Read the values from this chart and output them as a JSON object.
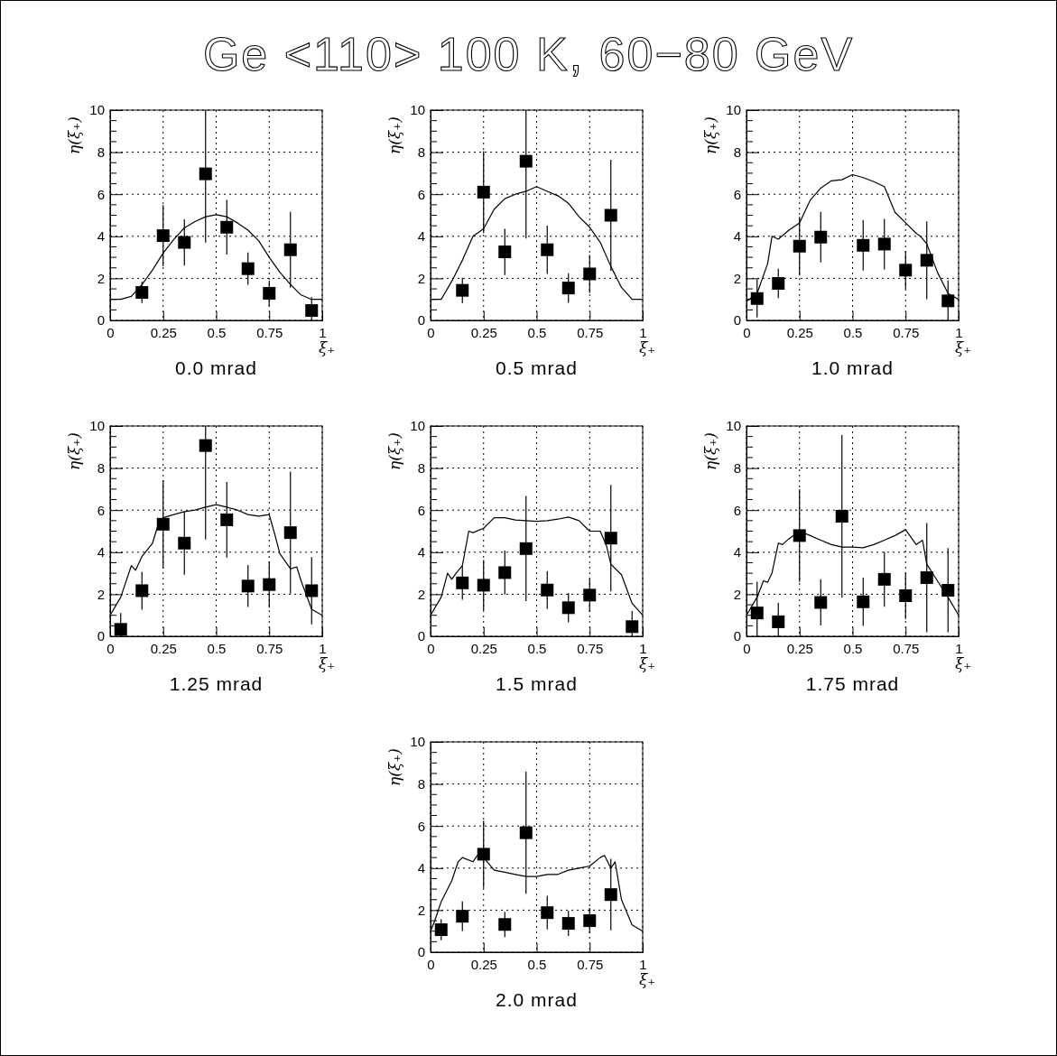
{
  "chart_data": [
    {
      "type": "scatter",
      "title": "Ge <110> 100 K, 60−80 GeV",
      "subtitle": "0.0 mrad",
      "xlabel": "ξ₊",
      "ylabel": "η(ξ₊)",
      "xlim": [
        0,
        1
      ],
      "ylim": [
        0,
        10
      ],
      "xticks": [
        0,
        0.25,
        0.5,
        0.75,
        1
      ],
      "yticks": [
        0,
        2,
        4,
        6,
        8,
        10
      ],
      "grid": true,
      "line_style": "solid",
      "series": [
        {
          "marker": "square",
          "color": "#000000",
          "x": [
            0.15,
            0.25,
            0.35,
            0.45,
            0.55,
            0.65,
            0.75,
            0.85,
            0.95
          ],
          "values": [
            1.33,
            4.03,
            3.71,
            6.97,
            4.43,
            2.46,
            1.29,
            3.36,
            0.47
          ],
          "errors": [
            0.5,
            1.45,
            1.1,
            [
              3.7,
              10
            ],
            1.3,
            0.77,
            0.6,
            1.8,
            [
              0,
              1.1
            ]
          ]
        },
        {
          "type": "line",
          "marker": "none",
          "color": "#000000",
          "x": [
            0,
            0.05,
            0.1,
            0.15,
            0.2,
            0.25,
            0.3,
            0.35,
            0.4,
            0.45,
            0.5,
            0.55,
            0.6,
            0.65,
            0.7,
            0.75,
            0.8,
            0.85,
            0.9,
            0.95,
            1
          ],
          "values": [
            1.0,
            1.0,
            1.14,
            1.7,
            2.4,
            3.2,
            3.85,
            4.4,
            4.7,
            4.93,
            5.03,
            4.93,
            4.64,
            4.29,
            3.79,
            3.0,
            2.29,
            1.71,
            1.21,
            1.0,
            1.0
          ]
        }
      ]
    },
    {
      "type": "scatter",
      "subtitle": "0.5 mrad",
      "xlabel": "ξ₊",
      "ylabel": "η(ξ₊)",
      "xlim": [
        0,
        1
      ],
      "ylim": [
        0,
        10
      ],
      "xticks": [
        0,
        0.25,
        0.5,
        0.75,
        1
      ],
      "yticks": [
        0,
        2,
        4,
        6,
        8,
        10
      ],
      "grid": true,
      "line_style": "solid",
      "series": [
        {
          "marker": "square",
          "color": "#000000",
          "x": [
            0.15,
            0.25,
            0.35,
            0.45,
            0.55,
            0.65,
            0.75,
            0.85
          ],
          "values": [
            1.43,
            6.1,
            3.26,
            7.57,
            3.36,
            1.54,
            2.21,
            5.0
          ],
          "errors": [
            0.6,
            1.95,
            1.1,
            [
              3.9,
              10
            ],
            1.15,
            0.7,
            0.9,
            2.64
          ]
        },
        {
          "type": "line",
          "marker": "none",
          "color": "#000000",
          "x": [
            0,
            0.05,
            0.1,
            0.15,
            0.2,
            0.25,
            0.3,
            0.35,
            0.4,
            0.45,
            0.5,
            0.55,
            0.6,
            0.65,
            0.7,
            0.75,
            0.8,
            0.85,
            0.9,
            0.95,
            1
          ],
          "values": [
            1.0,
            1.0,
            1.86,
            2.86,
            4.0,
            4.36,
            5.29,
            5.79,
            6.0,
            6.14,
            6.36,
            6.14,
            5.93,
            5.57,
            4.93,
            4.43,
            3.71,
            2.57,
            1.57,
            1.0,
            1.0
          ]
        }
      ]
    },
    {
      "type": "scatter",
      "subtitle": "1.0 mrad",
      "xlabel": "ξ₊",
      "ylabel": "η(ξ₊)",
      "xlim": [
        0,
        1
      ],
      "ylim": [
        0,
        10
      ],
      "xticks": [
        0,
        0.25,
        0.5,
        0.75,
        1
      ],
      "yticks": [
        0,
        2,
        4,
        6,
        8,
        10
      ],
      "grid": true,
      "line_style": "solid",
      "series": [
        {
          "marker": "square",
          "color": "#000000",
          "x": [
            0.05,
            0.15,
            0.25,
            0.35,
            0.55,
            0.65,
            0.75,
            0.85,
            0.95
          ],
          "values": [
            1.04,
            1.76,
            3.53,
            3.96,
            3.57,
            3.63,
            2.39,
            2.86,
            0.93
          ],
          "errors": [
            0.9,
            0.7,
            1.4,
            1.2,
            1.2,
            1.2,
            0.9,
            1.85,
            [
              0,
              1.9
            ]
          ]
        },
        {
          "type": "line",
          "marker": "none",
          "color": "#000000",
          "x": [
            0,
            0.05,
            0.1,
            0.12,
            0.15,
            0.2,
            0.25,
            0.3,
            0.35,
            0.4,
            0.45,
            0.5,
            0.55,
            0.6,
            0.65,
            0.7,
            0.75,
            0.8,
            0.82,
            0.85,
            0.9,
            0.95,
            1
          ],
          "values": [
            0.9,
            1.29,
            2.71,
            4.0,
            3.86,
            4.29,
            4.64,
            5.71,
            6.29,
            6.64,
            6.69,
            6.93,
            6.79,
            6.6,
            6.36,
            5.14,
            4.64,
            4.14,
            4.0,
            3.64,
            2.29,
            1.29,
            1.0
          ]
        }
      ]
    },
    {
      "type": "scatter",
      "subtitle": "1.25 mrad",
      "xlabel": "ξ₊",
      "ylabel": "η(ξ₊)",
      "xlim": [
        0,
        1
      ],
      "ylim": [
        0,
        10
      ],
      "xticks": [
        0,
        0.25,
        0.5,
        0.75,
        1
      ],
      "yticks": [
        0,
        2,
        4,
        6,
        8,
        10
      ],
      "grid": true,
      "line_style": "solid",
      "series": [
        {
          "marker": "square",
          "color": "#000000",
          "x": [
            0.05,
            0.15,
            0.25,
            0.35,
            0.45,
            0.55,
            0.65,
            0.75,
            0.85,
            0.95
          ],
          "values": [
            0.33,
            2.17,
            5.33,
            4.43,
            9.07,
            5.54,
            2.39,
            2.46,
            4.93,
            2.17
          ],
          "errors": [
            [
              0,
              1.1
            ],
            0.9,
            2.1,
            1.5,
            [
              4.6,
              10
            ],
            1.8,
            1.0,
            1.1,
            2.9,
            1.6
          ]
        },
        {
          "type": "line",
          "marker": "none",
          "color": "#000000",
          "x": [
            0,
            0.05,
            0.1,
            0.12,
            0.15,
            0.2,
            0.23,
            0.25,
            0.3,
            0.35,
            0.4,
            0.45,
            0.5,
            0.55,
            0.6,
            0.65,
            0.7,
            0.75,
            0.78,
            0.8,
            0.85,
            0.88,
            0.9,
            0.95,
            1
          ],
          "values": [
            1.0,
            1.86,
            3.36,
            3.14,
            3.79,
            4.43,
            5.43,
            5.64,
            5.79,
            5.93,
            6.0,
            6.14,
            6.26,
            6.14,
            6.0,
            5.79,
            5.71,
            5.79,
            4.71,
            3.93,
            3.21,
            3.3,
            2.64,
            1.29,
            1.0
          ]
        }
      ]
    },
    {
      "type": "scatter",
      "subtitle": "1.5 mrad",
      "xlabel": "ξ₊",
      "ylabel": "η(ξ₊)",
      "xlim": [
        0,
        1
      ],
      "ylim": [
        0,
        10
      ],
      "xticks": [
        0,
        0.25,
        0.5,
        0.75,
        1
      ],
      "yticks": [
        0,
        2,
        4,
        6,
        8,
        10
      ],
      "grid": true,
      "line_style": "solid",
      "series": [
        {
          "marker": "square",
          "color": "#000000",
          "x": [
            0.15,
            0.25,
            0.35,
            0.45,
            0.55,
            0.65,
            0.75,
            0.85,
            0.95
          ],
          "values": [
            2.54,
            2.43,
            3.03,
            4.17,
            2.2,
            1.36,
            1.96,
            4.67,
            0.46
          ],
          "errors": [
            0.8,
            1.2,
            1.05,
            2.5,
            0.9,
            0.7,
            0.8,
            2.53,
            [
              0,
              1.2
            ]
          ]
        },
        {
          "type": "line",
          "marker": "none",
          "color": "#000000",
          "x": [
            0,
            0.05,
            0.08,
            0.1,
            0.12,
            0.15,
            0.18,
            0.2,
            0.25,
            0.3,
            0.35,
            0.4,
            0.45,
            0.5,
            0.55,
            0.6,
            0.65,
            0.7,
            0.75,
            0.8,
            0.83,
            0.85,
            0.9,
            0.95,
            1
          ],
          "values": [
            1.0,
            1.86,
            3.0,
            2.71,
            3.0,
            3.36,
            5.0,
            4.93,
            5.14,
            5.64,
            5.64,
            5.53,
            5.5,
            5.47,
            5.5,
            5.57,
            5.67,
            5.5,
            5.0,
            5.0,
            4.29,
            3.43,
            2.93,
            1.57,
            1.0
          ]
        }
      ]
    },
    {
      "type": "scatter",
      "subtitle": "1.75 mrad",
      "xlabel": "ξ₊",
      "ylabel": "η(ξ₊)",
      "xlim": [
        0,
        1
      ],
      "ylim": [
        0,
        10
      ],
      "xticks": [
        0,
        0.25,
        0.5,
        0.75,
        1
      ],
      "yticks": [
        0,
        2,
        4,
        6,
        8,
        10
      ],
      "grid": true,
      "line_style": "solid",
      "series": [
        {
          "marker": "square",
          "color": "#000000",
          "x": [
            0.05,
            0.15,
            0.25,
            0.35,
            0.45,
            0.55,
            0.65,
            0.75,
            0.85,
            0.95
          ],
          "values": [
            1.11,
            0.69,
            4.79,
            1.61,
            5.71,
            1.64,
            2.71,
            1.93,
            2.79,
            2.19
          ],
          "errors": [
            [
              0,
              2.6
            ],
            [
              0,
              1.6
            ],
            2.2,
            1.1,
            3.86,
            1.15,
            1.3,
            1.1,
            2.6,
            2.0
          ]
        },
        {
          "type": "line",
          "marker": "none",
          "color": "#000000",
          "x": [
            0,
            0.05,
            0.08,
            0.1,
            0.12,
            0.15,
            0.17,
            0.2,
            0.25,
            0.3,
            0.35,
            0.4,
            0.45,
            0.5,
            0.55,
            0.6,
            0.65,
            0.7,
            0.75,
            0.8,
            0.83,
            0.85,
            0.9,
            0.95,
            1
          ],
          "values": [
            1.0,
            1.86,
            2.64,
            2.57,
            3.0,
            4.43,
            4.36,
            4.64,
            5.0,
            4.79,
            4.57,
            4.36,
            4.24,
            4.24,
            4.21,
            4.36,
            4.57,
            4.79,
            5.07,
            4.36,
            4.57,
            3.43,
            2.64,
            1.86,
            1.0
          ]
        }
      ]
    },
    {
      "type": "scatter",
      "subtitle": "2.0 mrad",
      "xlabel": "ξ₊",
      "ylabel": "η(ξ₊)",
      "xlim": [
        0,
        1
      ],
      "ylim": [
        0,
        10
      ],
      "xticks": [
        0,
        0.25,
        0.5,
        0.75,
        1
      ],
      "yticks": [
        0,
        2,
        4,
        6,
        8,
        10
      ],
      "grid": true,
      "line_style": "solid",
      "series": [
        {
          "marker": "square",
          "color": "#000000",
          "x": [
            0.05,
            0.15,
            0.25,
            0.35,
            0.45,
            0.55,
            0.65,
            0.75,
            0.85
          ],
          "values": [
            1.07,
            1.71,
            4.66,
            1.32,
            5.68,
            1.88,
            1.37,
            1.5,
            2.74
          ],
          "errors": [
            0.5,
            0.7,
            1.6,
            0.6,
            2.9,
            0.8,
            0.6,
            0.6,
            1.7
          ]
        },
        {
          "type": "line",
          "marker": "none",
          "color": "#000000",
          "x": [
            0,
            0.02,
            0.05,
            0.1,
            0.13,
            0.15,
            0.2,
            0.22,
            0.25,
            0.3,
            0.35,
            0.4,
            0.45,
            0.5,
            0.55,
            0.6,
            0.65,
            0.7,
            0.75,
            0.8,
            0.82,
            0.85,
            0.87,
            0.9,
            0.95,
            1
          ],
          "values": [
            1.0,
            1.5,
            2.4,
            3.4,
            4.3,
            4.5,
            4.3,
            4.6,
            4.5,
            3.9,
            3.8,
            3.7,
            3.6,
            3.6,
            3.7,
            3.7,
            3.9,
            4.0,
            4.1,
            4.5,
            4.6,
            4.0,
            4.3,
            2.5,
            1.3,
            1.0
          ]
        }
      ]
    }
  ]
}
